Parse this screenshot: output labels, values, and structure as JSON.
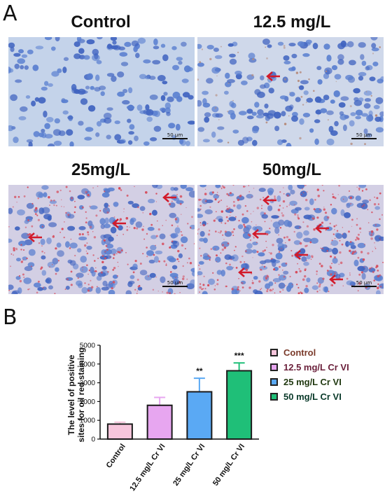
{
  "panels": {
    "a": "A",
    "b": "B"
  },
  "images": [
    {
      "title": "Control",
      "scale": "50 μm",
      "arrows": 0
    },
    {
      "title": "12.5 mg/L",
      "scale": "50 μm",
      "arrows": 1
    },
    {
      "title": "25mg/L",
      "scale": "50 μm",
      "arrows": 3
    },
    {
      "title": "50mg/L",
      "scale": "50 μm",
      "arrows": 6
    }
  ],
  "chart_data": {
    "type": "bar",
    "title": "",
    "xlabel": "",
    "ylabel": "The level of positive sites for oil red staining",
    "ylim": [
      0,
      5000
    ],
    "yticks": [
      "0",
      "1000",
      "2000",
      "3000",
      "4000",
      "5000"
    ],
    "categories": [
      "Control",
      "12.5 mg/L Cr VI",
      "25 mg/L Cr VI",
      "50 mg/L Cr VI"
    ],
    "values": [
      800,
      1800,
      2520,
      3640
    ],
    "errors": [
      100,
      420,
      720,
      420
    ],
    "significance": [
      "",
      "",
      "**",
      "***"
    ],
    "colors": [
      "#f7c6dc",
      "#e7a6f0",
      "#5aa9f4",
      "#1fbf78"
    ],
    "legend": [
      "Control",
      "12.5 mg/L Cr VI",
      "25 mg/L Cr VI",
      "50 mg/L Cr VI"
    ],
    "legend_text_colors": [
      "#7a3a2a",
      "#6a1f3a",
      "#223a12",
      "#0a3a2a"
    ],
    "legend_placement": "right",
    "grid": false
  }
}
